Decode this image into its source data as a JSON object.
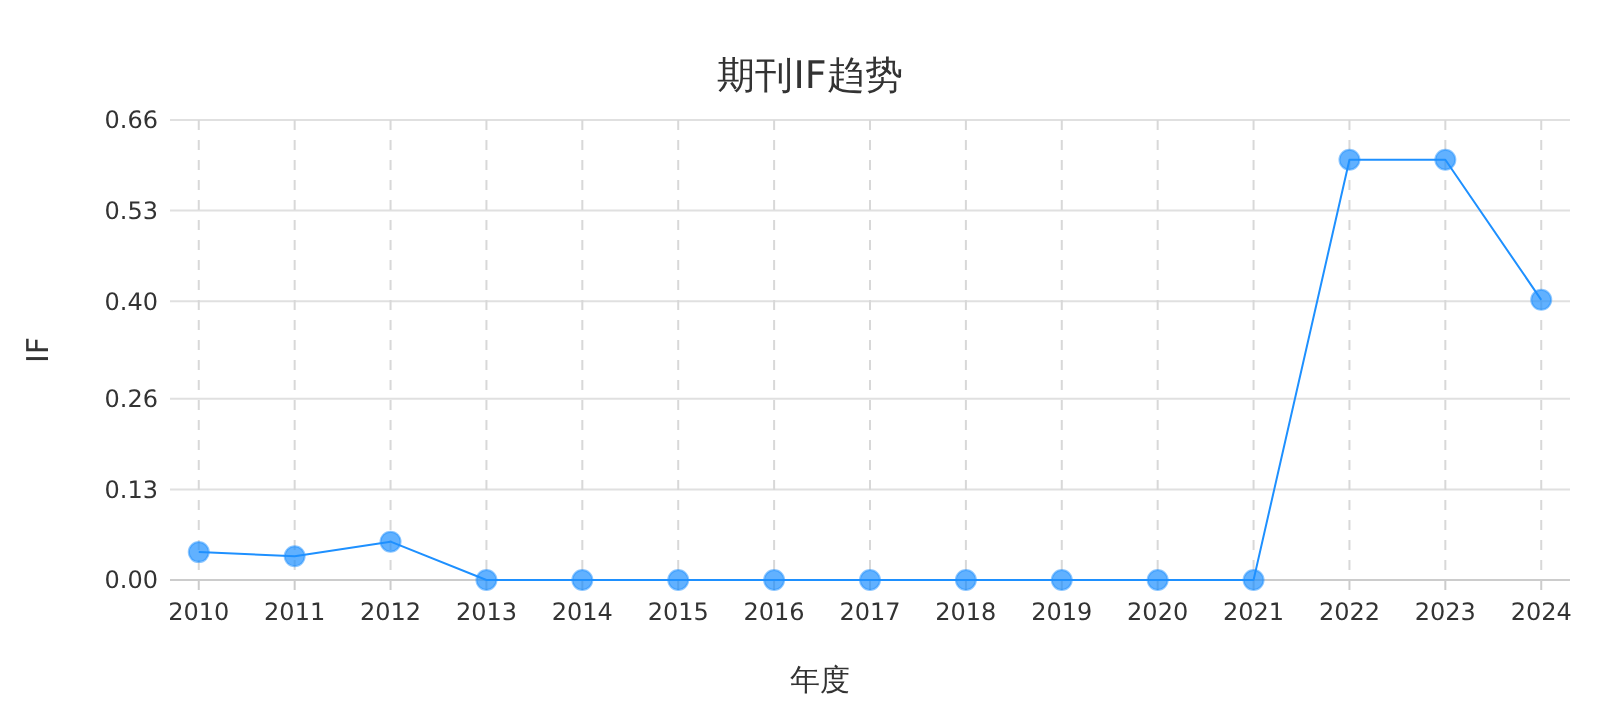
{
  "chart_data": {
    "type": "line",
    "title": "期刊IF趋势",
    "xlabel": "年度",
    "ylabel": "IF",
    "categories": [
      "2010",
      "2011",
      "2012",
      "2013",
      "2014",
      "2015",
      "2016",
      "2017",
      "2018",
      "2019",
      "2020",
      "2021",
      "2022",
      "2023",
      "2024"
    ],
    "series": [
      {
        "color": "#1e90ff",
        "values": [
          0.04,
          0.034,
          0.055,
          0,
          0,
          0,
          0,
          0,
          0,
          0,
          0,
          0,
          0.603,
          0.603,
          0.402
        ]
      }
    ],
    "ylim": [
      0,
      0.66
    ],
    "yticks": [
      {
        "value": 0,
        "label": "0.00"
      },
      {
        "value": 0.13,
        "label": "0.13"
      },
      {
        "value": 0.26,
        "label": "0.26"
      },
      {
        "value": 0.4,
        "label": "0.40"
      },
      {
        "value": 0.53,
        "label": "0.53"
      },
      {
        "value": 0.66,
        "label": "0.66"
      }
    ],
    "grid": true,
    "marker": "circle",
    "line_style": "solid"
  }
}
